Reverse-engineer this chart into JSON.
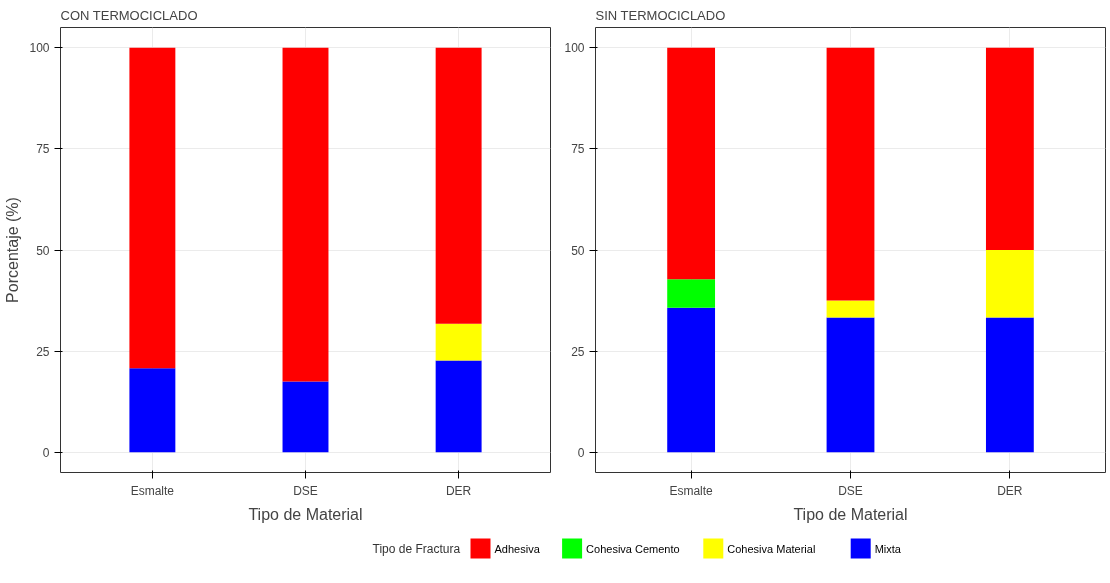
{
  "chart_data": [
    {
      "type": "bar",
      "title": "CON TERMOCICLADO",
      "xlabel": "Tipo de Material",
      "ylabel": "Porcentaje (%)",
      "legend_title": "Tipo de Fractura",
      "categories": [
        "Esmalte",
        "DSE",
        "DER"
      ],
      "stacked": true,
      "series": [
        {
          "name": "Mixta",
          "color": "#0000ff",
          "values": [
            20.8,
            17.5,
            22.7
          ]
        },
        {
          "name": "Cohesiva Material",
          "color": "#ffff00",
          "values": [
            0,
            0,
            9.1
          ]
        },
        {
          "name": "Cohesiva Cemento",
          "color": "#00ff00",
          "values": [
            0,
            0,
            0
          ]
        },
        {
          "name": "Adhesiva",
          "color": "#ff0000",
          "values": [
            79.2,
            82.5,
            68.2
          ]
        }
      ],
      "ylim": [
        -5,
        105
      ],
      "yticks": [
        0,
        25,
        50,
        75,
        100
      ],
      "grid": true,
      "legend": "bottom"
    },
    {
      "type": "bar",
      "title": "SIN TERMOCICLADO",
      "xlabel": "Tipo de Material",
      "categories": [
        "Esmalte",
        "DSE",
        "DER"
      ],
      "stacked": true,
      "series": [
        {
          "color": "#0000ff",
          "values": [
            35.7,
            33.3,
            33.3
          ]
        },
        {
          "color": "#ffff00",
          "values": [
            0,
            4.2,
            16.7
          ]
        },
        {
          "color": "#00ff00",
          "values": [
            7.1,
            0,
            0
          ]
        },
        {
          "color": "#ff0000",
          "values": [
            57.2,
            62.5,
            50
          ]
        }
      ],
      "ylim": [
        -5,
        105
      ],
      "yticks": [
        0,
        25,
        50,
        75,
        100
      ],
      "grid": true
    }
  ]
}
